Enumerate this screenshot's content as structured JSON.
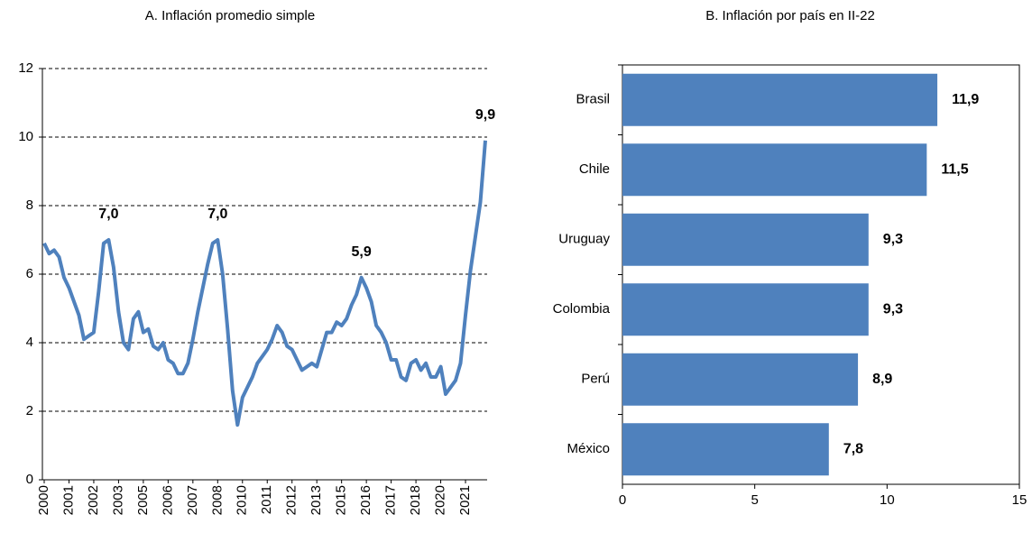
{
  "chart_data": [
    {
      "type": "line",
      "title": "A. Inflación promedio simple",
      "color": "#4f81bd",
      "grid": true,
      "ylim": [
        0,
        12
      ],
      "yticks": [
        0,
        2,
        4,
        6,
        8,
        10,
        12
      ],
      "categories": [
        "2000",
        null,
        null,
        null,
        null,
        "2001",
        null,
        null,
        null,
        null,
        "2002",
        null,
        null,
        null,
        null,
        "2003",
        null,
        null,
        null,
        null,
        "2005",
        null,
        null,
        null,
        null,
        "2006",
        null,
        null,
        null,
        null,
        "2007",
        null,
        null,
        null,
        null,
        "2008",
        null,
        null,
        null,
        null,
        "2010",
        null,
        null,
        null,
        null,
        "2011",
        null,
        null,
        null,
        null,
        "2012",
        null,
        null,
        null,
        null,
        "2013",
        null,
        null,
        null,
        null,
        "2015",
        null,
        null,
        null,
        null,
        "2016",
        null,
        null,
        null,
        null,
        "2017",
        null,
        null,
        null,
        null,
        "2018",
        null,
        null,
        null,
        null,
        "2020",
        null,
        null,
        null,
        null,
        "2021",
        null,
        null,
        null,
        null
      ],
      "values": [
        6.9,
        6.6,
        6.7,
        6.5,
        5.9,
        5.6,
        5.2,
        4.8,
        4.1,
        4.2,
        4.3,
        5.5,
        6.9,
        7.0,
        6.2,
        4.9,
        4.0,
        3.8,
        4.7,
        4.9,
        4.3,
        4.4,
        3.9,
        3.8,
        4.0,
        3.5,
        3.4,
        3.1,
        3.1,
        3.4,
        4.1,
        4.9,
        5.6,
        6.3,
        6.9,
        7.0,
        6.0,
        4.4,
        2.6,
        1.6,
        2.4,
        2.7,
        3.0,
        3.4,
        3.6,
        3.8,
        4.1,
        4.5,
        4.3,
        3.9,
        3.8,
        3.5,
        3.2,
        3.3,
        3.4,
        3.3,
        3.8,
        4.3,
        4.3,
        4.6,
        4.5,
        4.7,
        5.1,
        5.4,
        5.9,
        5.6,
        5.2,
        4.5,
        4.3,
        4.0,
        3.5,
        3.5,
        3.0,
        2.9,
        3.4,
        3.5,
        3.2,
        3.4,
        3.0,
        3.0,
        3.3,
        2.5,
        2.7,
        2.9,
        3.4,
        4.8,
        6.1,
        7.1,
        8.1,
        9.9
      ],
      "value_labels": [
        null,
        null,
        null,
        null,
        null,
        null,
        null,
        null,
        null,
        null,
        null,
        null,
        null,
        "7,0",
        null,
        null,
        null,
        null,
        null,
        null,
        null,
        null,
        null,
        null,
        null,
        null,
        null,
        null,
        null,
        null,
        null,
        null,
        null,
        null,
        null,
        "7,0",
        null,
        null,
        null,
        null,
        null,
        null,
        null,
        null,
        null,
        null,
        null,
        null,
        null,
        null,
        null,
        null,
        null,
        null,
        null,
        null,
        null,
        null,
        null,
        null,
        null,
        null,
        null,
        null,
        "5,9",
        null,
        null,
        null,
        null,
        null,
        null,
        null,
        null,
        null,
        null,
        null,
        null,
        null,
        null,
        null,
        null,
        null,
        null,
        null,
        null,
        null,
        null,
        null,
        null,
        "9,9"
      ]
    },
    {
      "type": "hbar",
      "title": "B. Inflación por país en II-22",
      "color": "#4f81bd",
      "categories": [
        "Brasil",
        "Chile",
        "Uruguay",
        "Colombia",
        "Perú",
        "México"
      ],
      "values": [
        11.9,
        11.5,
        9.3,
        9.3,
        8.9,
        7.8
      ],
      "value_labels": [
        "11,9",
        "11,5",
        "9,3",
        "9,3",
        "8,9",
        "7,8"
      ],
      "xlim": [
        0,
        15
      ],
      "xticks": [
        0,
        5,
        10,
        15
      ]
    }
  ]
}
